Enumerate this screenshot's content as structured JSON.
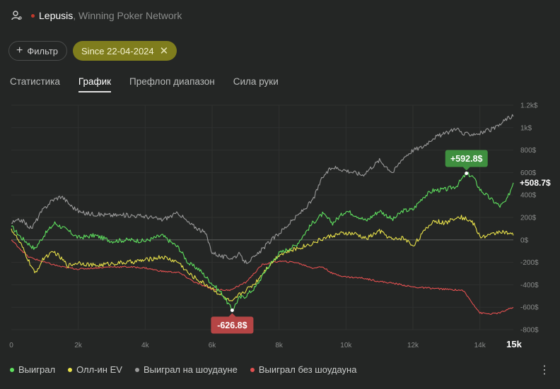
{
  "header": {
    "player": "Lepusis",
    "network": ", Winning Poker Network",
    "status_color": "#c0392b"
  },
  "filters": {
    "filter_button": "Фильтр",
    "date_chip": "Since 22-04-2024",
    "chip_color": "#7f7d1d"
  },
  "tabs": [
    {
      "label": "Статистика",
      "active": false
    },
    {
      "label": "График",
      "active": true
    },
    {
      "label": "Префлоп диапазон",
      "active": false
    },
    {
      "label": "Сила руки",
      "active": false
    }
  ],
  "chart_data": {
    "type": "line",
    "xlim": [
      0,
      15000
    ],
    "ylim": [
      -800,
      1200
    ],
    "x_ticks": [
      "0",
      "2k",
      "4k",
      "6k",
      "8k",
      "10k",
      "12k",
      "14k",
      "15k"
    ],
    "y_ticks": [
      "1.2k$",
      "1k$",
      "800$",
      "600$",
      "400$",
      "200$",
      "0$",
      "-200$",
      "-400$",
      "-600$",
      "-800$"
    ],
    "grid": true,
    "legend": "bottom",
    "annotations": [
      {
        "label": "+592.8$",
        "x": 13600,
        "y": 593,
        "color": "#3f8f3f"
      },
      {
        "label": "-626.8$",
        "x": 6600,
        "y": -627,
        "color": "#b54545"
      },
      {
        "label": "+508.7$",
        "x": 15000,
        "y": 509
      }
    ],
    "series": [
      {
        "name": "Выиграл",
        "color": "#5fe05f",
        "x": [
          0,
          300,
          700,
          1000,
          1300,
          1700,
          2000,
          2500,
          3000,
          3500,
          4000,
          4500,
          5000,
          5300,
          5600,
          6000,
          6300,
          6600,
          6800,
          7000,
          7300,
          7600,
          8000,
          8500,
          9000,
          9300,
          9600,
          10000,
          10300,
          10600,
          11000,
          11400,
          11700,
          12000,
          12300,
          12600,
          13000,
          13300,
          13600,
          13800,
          14000,
          14300,
          14600,
          14800,
          15000
        ],
        "y": [
          120,
          20,
          -80,
          50,
          150,
          80,
          20,
          40,
          -10,
          0,
          -10,
          40,
          -70,
          -210,
          -260,
          -390,
          -480,
          -627,
          -520,
          -500,
          -420,
          -270,
          -120,
          -50,
          150,
          230,
          150,
          260,
          220,
          170,
          260,
          180,
          260,
          270,
          380,
          440,
          450,
          480,
          593,
          560,
          450,
          370,
          300,
          350,
          509
        ]
      },
      {
        "name": "Олл-ин EV",
        "color": "#e9e24a",
        "x": [
          0,
          300,
          700,
          1000,
          1300,
          1700,
          2000,
          2500,
          3000,
          3500,
          4000,
          4500,
          5000,
          5300,
          5600,
          6000,
          6300,
          6600,
          6800,
          7000,
          7300,
          7600,
          8000,
          8500,
          9000,
          9300,
          9600,
          10000,
          10300,
          10600,
          11000,
          11400,
          11700,
          12000,
          12300,
          12600,
          13000,
          13300,
          13600,
          13800,
          14000,
          14300,
          14600,
          14800,
          15000
        ],
        "y": [
          100,
          -50,
          -300,
          -150,
          -110,
          -230,
          -200,
          -230,
          -210,
          -200,
          -180,
          -150,
          -200,
          -300,
          -360,
          -430,
          -500,
          -560,
          -490,
          -450,
          -380,
          -260,
          -130,
          -80,
          -30,
          10,
          40,
          60,
          50,
          10,
          80,
          0,
          20,
          -50,
          60,
          170,
          150,
          210,
          190,
          150,
          30,
          40,
          80,
          60,
          40
        ]
      },
      {
        "name": "Выиграл на шоудауне",
        "color": "#9a9a9a",
        "x": [
          0,
          300,
          600,
          900,
          1200,
          1500,
          1800,
          2100,
          2500,
          3000,
          3500,
          4000,
          4500,
          5000,
          5300,
          5800,
          6000,
          6300,
          6600,
          6800,
          7000,
          7300,
          7600,
          8000,
          8500,
          9000,
          9300,
          9600,
          10000,
          10500,
          11000,
          11400,
          11700,
          12000,
          12300,
          12600,
          13000,
          13300,
          13500,
          14000,
          14500,
          14800,
          15000
        ],
        "y": [
          150,
          180,
          100,
          250,
          350,
          390,
          300,
          240,
          230,
          220,
          220,
          210,
          180,
          240,
          150,
          60,
          -110,
          -150,
          -160,
          -130,
          -200,
          -150,
          -50,
          60,
          200,
          350,
          560,
          650,
          620,
          580,
          710,
          600,
          730,
          800,
          830,
          910,
          950,
          1000,
          940,
          950,
          1000,
          1080,
          1100
        ]
      },
      {
        "name": "Выиграл без шоудауна",
        "color": "#e25050",
        "x": [
          0,
          500,
          1000,
          1500,
          2000,
          2500,
          3000,
          3500,
          4000,
          4500,
          5000,
          5500,
          6000,
          6500,
          7000,
          7500,
          8000,
          8500,
          9000,
          9300,
          9600,
          10000,
          10500,
          11000,
          11500,
          12000,
          12500,
          13000,
          13500,
          14000,
          14300,
          14600,
          15000
        ],
        "y": [
          0,
          -150,
          -200,
          -240,
          -260,
          -250,
          -240,
          -240,
          -250,
          -280,
          -290,
          -380,
          -440,
          -450,
          -380,
          -220,
          -190,
          -200,
          -250,
          -240,
          -300,
          -330,
          -340,
          -370,
          -390,
          -420,
          -430,
          -440,
          -450,
          -650,
          -660,
          -650,
          -600
        ]
      }
    ]
  }
}
